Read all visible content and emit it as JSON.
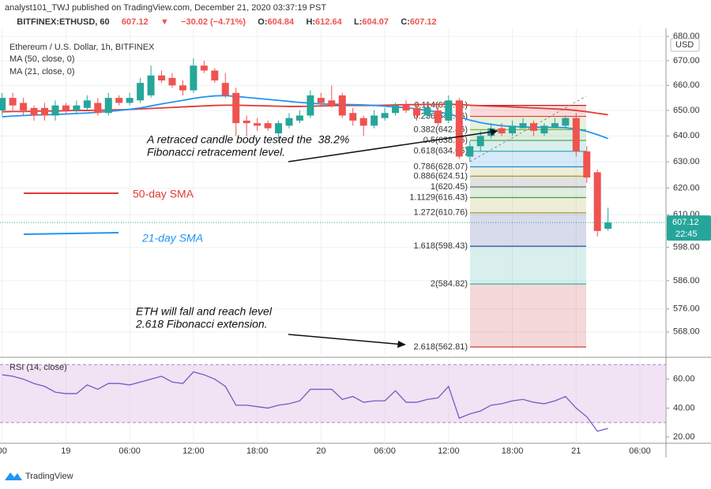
{
  "header": {
    "publisher": "analyst101_TWJ published on TradingView.com, December 21, 2020 03:37:19 PST",
    "symbol": "BITFINEX:ETHUSD, 60",
    "arrow": "▼",
    "change": "−30.02 (−4.71%)",
    "ohlc_labels": [
      "O:",
      "H:",
      "L:",
      "C:"
    ],
    "instrument": "Ethereum / U.S. Dollar, 1h, BITFINEX",
    "currency": "USD",
    "countdown": "22:45"
  },
  "footer": "TradingView",
  "chart_data": [
    {
      "type": "candlestick",
      "log_scale": true,
      "grid": true,
      "up_color": "#26a69a",
      "down_color": "#ef5350",
      "x": [
        0,
        1,
        2,
        3,
        4,
        5,
        6,
        7,
        8,
        9,
        10,
        11,
        12,
        13,
        14,
        15,
        16,
        17,
        18,
        19,
        20,
        21,
        22,
        23,
        24,
        25,
        26,
        27,
        28,
        29,
        30,
        31,
        32,
        33,
        34,
        35,
        36,
        37,
        38,
        39,
        40,
        41,
        42,
        43,
        44,
        45,
        46,
        47,
        48,
        49,
        50,
        51,
        52,
        53,
        54,
        55,
        56,
        57
      ],
      "open": [
        650,
        655,
        653,
        651,
        651,
        648,
        652,
        650,
        651,
        653,
        649,
        655,
        653,
        654,
        656,
        664,
        663,
        660,
        658,
        668,
        666,
        661,
        657,
        646,
        645,
        645,
        641,
        644,
        646,
        648,
        655,
        654,
        656,
        649,
        647,
        644,
        647,
        649,
        652,
        651,
        648,
        650,
        646,
        654,
        632,
        636,
        640,
        643,
        641,
        643,
        645,
        641,
        643,
        644,
        647,
        634,
        626,
        604.84
      ],
      "high": [
        657,
        657,
        655,
        652,
        653,
        654,
        653,
        654,
        656,
        655,
        657,
        656,
        657,
        663,
        668,
        666,
        665,
        662,
        671,
        670,
        667,
        665,
        659,
        648,
        647,
        646,
        646,
        649,
        650,
        658,
        657,
        660,
        657,
        651,
        648,
        650,
        651,
        653,
        654,
        653,
        652,
        652,
        656,
        655,
        638,
        642,
        645,
        645,
        646,
        647,
        646,
        645,
        647,
        648,
        649,
        636,
        627,
        612.64
      ],
      "low": [
        648,
        650,
        648,
        646,
        646,
        646,
        649,
        649,
        650,
        648,
        648,
        652,
        652,
        653,
        655,
        661,
        659,
        656,
        657,
        665,
        661,
        655,
        640,
        640,
        642,
        642,
        638,
        643,
        645,
        647,
        652,
        651,
        647,
        644,
        640,
        643,
        646,
        648,
        649,
        646,
        647,
        644,
        645,
        631,
        630,
        634,
        639,
        640,
        640,
        643,
        640,
        640,
        643,
        643,
        632,
        622,
        602,
        604.07
      ],
      "close": [
        655,
        652,
        650,
        648,
        648,
        652,
        650,
        652,
        654,
        649,
        655,
        653,
        655,
        661,
        664,
        662,
        660,
        658,
        668,
        666,
        662,
        656,
        645,
        645,
        644,
        643,
        645,
        647,
        648,
        656,
        653,
        652,
        648,
        646,
        644,
        648,
        649,
        652,
        650,
        648,
        651,
        645,
        654,
        632,
        636,
        640,
        643,
        641,
        644,
        645,
        642,
        644,
        645,
        647,
        634,
        624,
        604,
        607.12
      ],
      "series": [
        {
          "name": "MA (50, close, 0)",
          "color": "#e53935",
          "values": [
            649.5,
            649.6,
            649.6,
            649.7,
            649.8,
            649.8,
            649.9,
            650.0,
            650.0,
            650.1,
            650.2,
            650.3,
            650.4,
            650.6,
            650.8,
            651.0,
            651.2,
            651.4,
            651.6,
            651.8,
            652.0,
            652.1,
            652.1,
            652.0,
            651.9,
            651.8,
            651.7,
            651.6,
            651.6,
            651.7,
            651.8,
            651.9,
            652.0,
            652.0,
            652.0,
            652.0,
            652.1,
            652.2,
            652.3,
            652.3,
            652.4,
            652.4,
            652.5,
            652.3,
            652.1,
            651.9,
            651.7,
            651.6,
            651.4,
            651.2,
            651.0,
            650.8,
            650.6,
            650.4,
            650.0,
            649.5,
            648.9,
            648.3
          ]
        },
        {
          "name": "MA (21, close, 0)",
          "color": "#2196f3",
          "values": [
            647.5,
            647.8,
            648.0,
            648.2,
            648.3,
            648.4,
            648.6,
            648.8,
            649.0,
            649.3,
            649.6,
            650.0,
            650.5,
            651.0,
            651.8,
            652.6,
            653.3,
            654.0,
            654.8,
            655.4,
            655.8,
            655.9,
            655.6,
            655.2,
            654.8,
            654.4,
            654.0,
            653.6,
            653.2,
            652.9,
            652.6,
            652.5,
            652.4,
            652.3,
            652.2,
            652.0,
            651.7,
            651.4,
            651.1,
            650.6,
            650.0,
            649.4,
            648.7,
            647.4,
            646.2,
            645.2,
            644.5,
            644.0,
            643.7,
            643.5,
            643.4,
            643.4,
            643.3,
            643.2,
            642.7,
            641.8,
            640.5,
            639.0
          ]
        }
      ],
      "xlim": [
        -0.2,
        62.45
      ],
      "xticks": [
        {
          "value": 0,
          "label": "00"
        },
        {
          "value": 6,
          "label": "19"
        },
        {
          "value": 12,
          "label": "06:00"
        },
        {
          "value": 18,
          "label": "12:00"
        },
        {
          "value": 24,
          "label": "18:00"
        },
        {
          "value": 30,
          "label": "20"
        },
        {
          "value": 36,
          "label": "06:00"
        },
        {
          "value": 42,
          "label": "12:00"
        },
        {
          "value": 48,
          "label": "18:00"
        },
        {
          "value": 54,
          "label": "21"
        },
        {
          "value": 60,
          "label": "06:00"
        }
      ],
      "ylim": [
        560.1,
        682
      ],
      "yticks": [
        {
          "value": 568,
          "label": "568.00"
        },
        {
          "value": 576,
          "label": "576.00"
        },
        {
          "value": 586,
          "label": "586.00"
        },
        {
          "value": 598,
          "label": "598.00"
        },
        {
          "value": 610,
          "label": "610.00"
        },
        {
          "value": 620,
          "label": "620.00"
        },
        {
          "value": 630,
          "label": "630.00"
        },
        {
          "value": 640,
          "label": "640.00"
        },
        {
          "value": 650,
          "label": "650.00"
        },
        {
          "value": 660,
          "label": "660.00"
        },
        {
          "value": 670,
          "label": "670.00"
        },
        {
          "value": 680,
          "label": "680.00"
        }
      ],
      "fib_levels": [
        {
          "label": "0.114(652.01)",
          "value": 652.01,
          "color": "#b71c1c"
        },
        {
          "label": "0.236(647.66)",
          "value": 647.66,
          "color": "#e53935"
        },
        {
          "label": "0.382(642.46)",
          "value": 642.46,
          "color": "#7cb342"
        },
        {
          "label": "0.5(638.25)",
          "value": 638.25,
          "color": "#43a047"
        },
        {
          "label": "0.618(634.05)",
          "value": 634.05,
          "color": "#26a69a"
        },
        {
          "label": "0.786(628.07)",
          "value": 628.07,
          "color": "#1e88e5"
        },
        {
          "label": "0.886(624.51)",
          "value": 624.51,
          "color": "#9e9d24"
        },
        {
          "label": "1(620.45)",
          "value": 620.45,
          "color": "#616161"
        },
        {
          "label": "1.1129(616.43)",
          "value": 616.43,
          "color": "#43a047"
        },
        {
          "label": "1.272(610.76)",
          "value": 610.76,
          "color": "#9e9d24"
        },
        {
          "label": "1.618(598.43)",
          "value": 598.43,
          "color": "#283593"
        },
        {
          "label": "2(584.82)",
          "value": 584.82,
          "color": "#26a69a"
        },
        {
          "label": "2.618(562.81)",
          "value": 562.81,
          "color": "#c62828"
        }
      ],
      "annotations": [
        "A retraced candle body tested the  38.2%",
        "Fibonacci retracement level.",
        "50-day SMA",
        "21-day SMA",
        "ETH will fall and reach level",
        "2.618 Fibonacci extension."
      ]
    },
    {
      "type": "line",
      "title": "RSI (14, close)",
      "color": "#7e57c2",
      "values": [
        63,
        62,
        60,
        57,
        55,
        51,
        50,
        50,
        56,
        53,
        57,
        57,
        56,
        58,
        60,
        62,
        58,
        57,
        65,
        63,
        60,
        55,
        42,
        42,
        41,
        40,
        42,
        43,
        45,
        53,
        53,
        53,
        46,
        48,
        44,
        45,
        45,
        52,
        44,
        44,
        46,
        47,
        55,
        33,
        36,
        38,
        42,
        43,
        45,
        46,
        44,
        43,
        45,
        48,
        40,
        34,
        24,
        26
      ],
      "band": [
        30,
        70
      ],
      "band_color": "#e1bee7",
      "ylim": [
        16.8,
        74
      ],
      "yticks": [
        {
          "value": 20,
          "label": "20.00"
        },
        {
          "value": 40,
          "label": "40.00"
        },
        {
          "value": 60,
          "label": "60.00"
        }
      ]
    }
  ]
}
